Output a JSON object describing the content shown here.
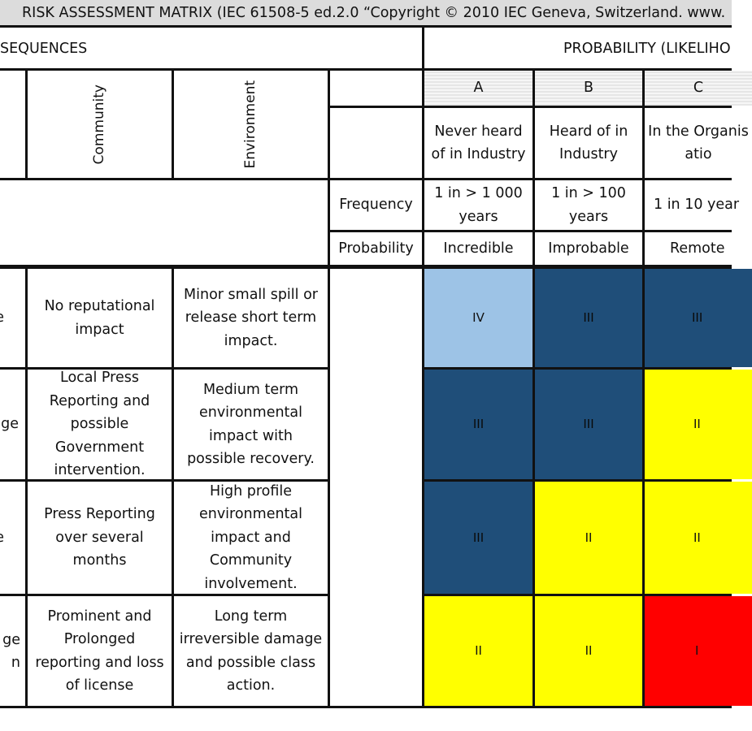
{
  "title": "RISK ASSESSMENT MATRIX (IEC 61508-5 ed.2.0 “Copyright © 2010 IEC Geneva, Switzerland. www.",
  "headers": {
    "consequences": "SEQUENCES",
    "probability": "PROBABILITY (LIKELIHO",
    "community": "Community",
    "environment": "Environment",
    "frequency": "Frequency",
    "probability_label": "Probability"
  },
  "columns": [
    {
      "letter": "A",
      "description": "Never heard of in Industry",
      "frequency": "1 in > 1 000 years",
      "probability": "Incredible"
    },
    {
      "letter": "B",
      "description": "Heard of in Industry",
      "frequency": "1 in > 100 years",
      "probability": "Improbable"
    },
    {
      "letter": "C",
      "description": "In the Organisatio",
      "frequency": "1 in 10 year",
      "probability": "Remote"
    }
  ],
  "rows": [
    {
      "left_fragment": "e",
      "community": "No reputational impact",
      "environment": "Minor small spill or release short term impact.",
      "risk": [
        "IV",
        "III",
        "III"
      ]
    },
    {
      "left_fragment": "ge",
      "community": "Local Press Reporting and possible Government intervention.",
      "environment": "Medium term environmental impact with possible recovery.",
      "risk": [
        "III",
        "III",
        "II"
      ]
    },
    {
      "left_fragment": "e",
      "community": "Press Reporting over several months",
      "environment": "High profile environmental impact and Community involvement.",
      "risk": [
        "III",
        "II",
        "II"
      ]
    },
    {
      "left_fragment": "ge\nn",
      "community": "Prominent and Prolonged reporting and loss of license",
      "environment": "Long term irreversible damage and possible class action.",
      "risk": [
        "II",
        "II",
        "I"
      ]
    }
  ],
  "colors": {
    "IV": "#9dc3e6",
    "III": "#1f4e79",
    "II": "#ffff00",
    "I": "#ff0000"
  }
}
